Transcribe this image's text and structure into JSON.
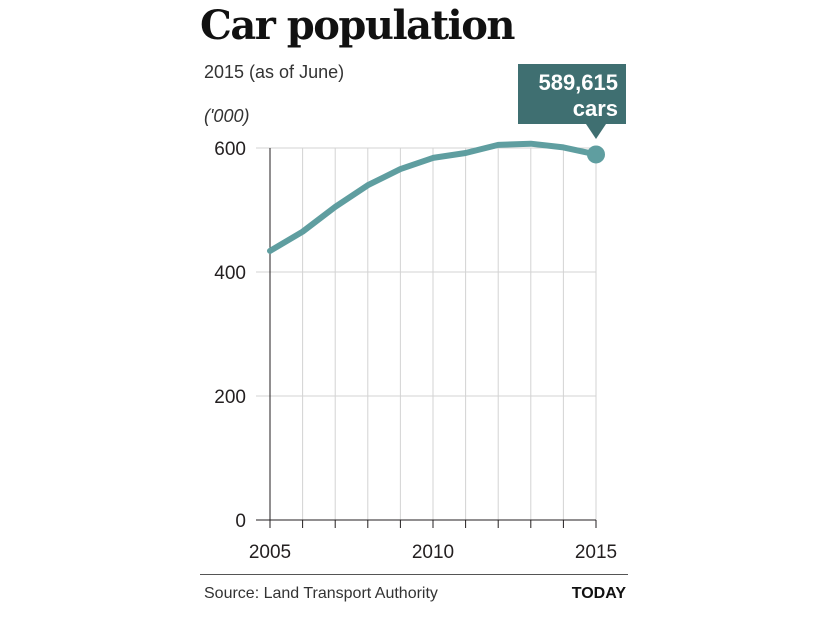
{
  "header": {
    "title": "Car population",
    "subtitle": "2015 (as of June)",
    "unit": "('000)"
  },
  "footer": {
    "source": "Source: Land Transport Authority",
    "brand": "TODAY"
  },
  "colors": {
    "line": "#5f9ea0",
    "callout_bg": "#3f6f71",
    "callout_text": "#ffffff",
    "grid": "#d3d3d3",
    "axis": "#231f20"
  },
  "chart_data": {
    "type": "line",
    "title": "Car population",
    "subtitle": "2015 (as of June)",
    "ylabel": "('000)",
    "xlabel": "",
    "ylim": [
      0,
      600
    ],
    "xlim": [
      2005,
      2015
    ],
    "yticks": [
      0,
      200,
      400,
      600
    ],
    "xtick_labels": [
      "2005",
      "2010",
      "2015"
    ],
    "grid": "vertical lines at each year, horizontal lines at y-ticks",
    "x": [
      2005,
      2006,
      2007,
      2008,
      2009,
      2010,
      2011,
      2012,
      2013,
      2014,
      2015
    ],
    "series": [
      {
        "values": [
          434,
          465,
          505,
          540,
          566,
          584,
          592,
          605,
          607,
          601,
          589.615
        ]
      }
    ],
    "annotation": {
      "year": 2015,
      "value_text": "589,615",
      "unit_text": "cars"
    }
  }
}
